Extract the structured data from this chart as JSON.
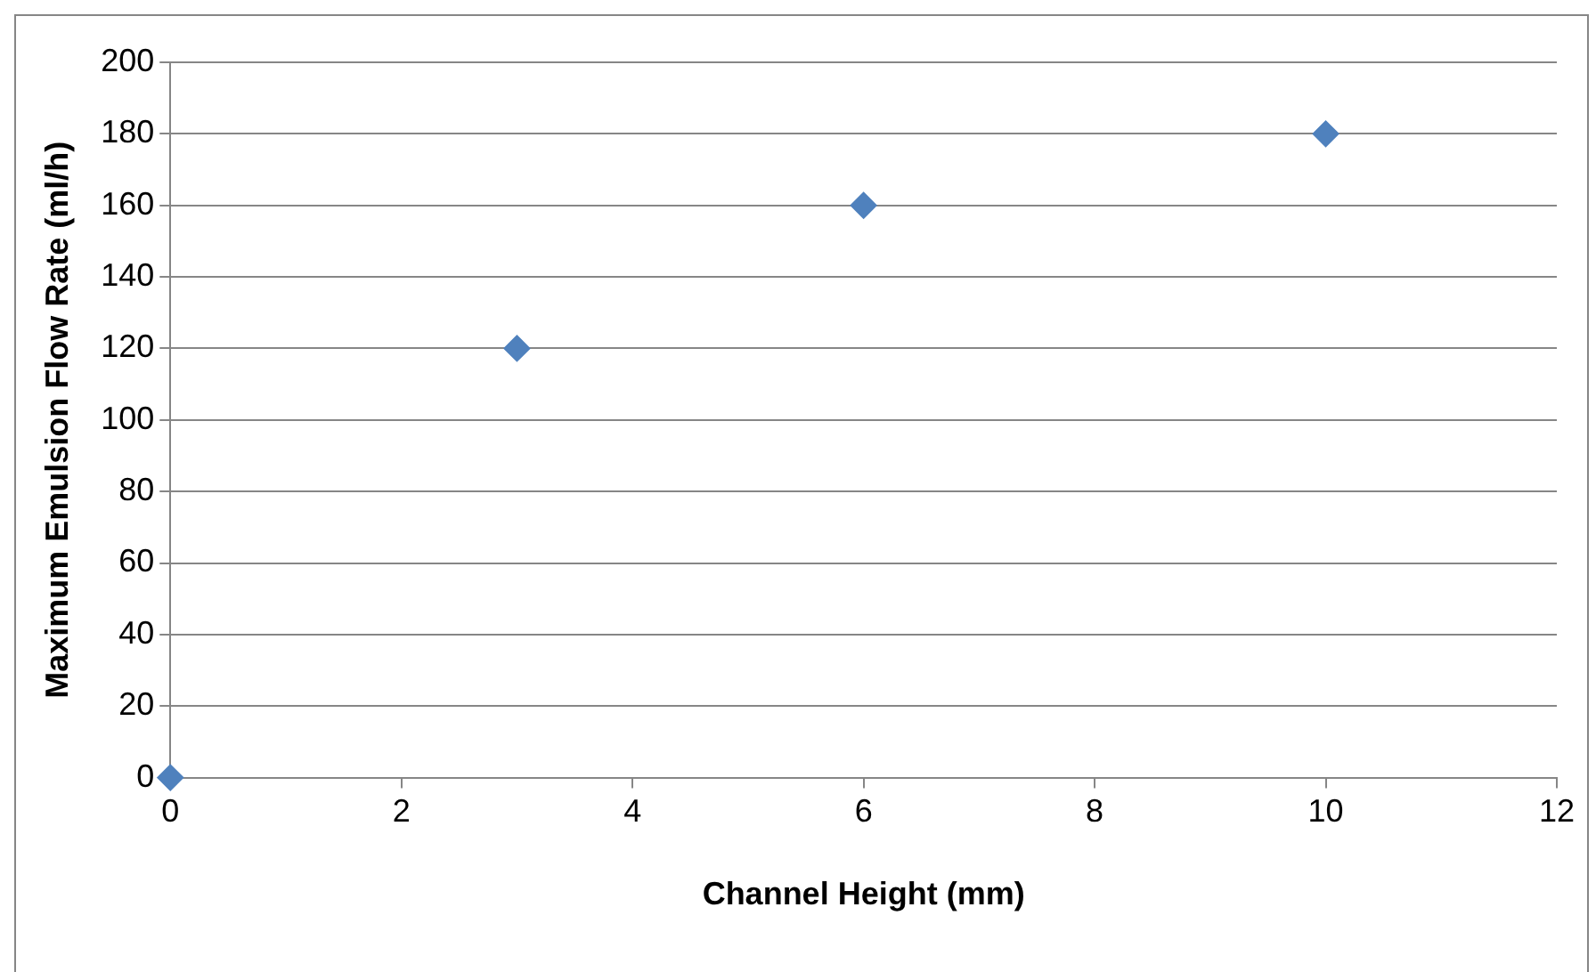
{
  "chart_data": {
    "type": "scatter",
    "xlabel": "Channel Height (mm)",
    "ylabel": "Maximum Emulsion Flow Rate (ml/h)",
    "x": [
      0,
      3,
      6,
      10
    ],
    "values": [
      0,
      120,
      160,
      180
    ],
    "color": "#4f81bd",
    "marker": "diamond",
    "grid": "y",
    "xlim": [
      0,
      12
    ],
    "xticks": [
      0,
      2,
      4,
      6,
      8,
      10,
      12
    ],
    "ylim": [
      0,
      200
    ],
    "yticks": [
      0,
      20,
      40,
      60,
      80,
      100,
      120,
      140,
      160,
      180,
      200
    ]
  }
}
